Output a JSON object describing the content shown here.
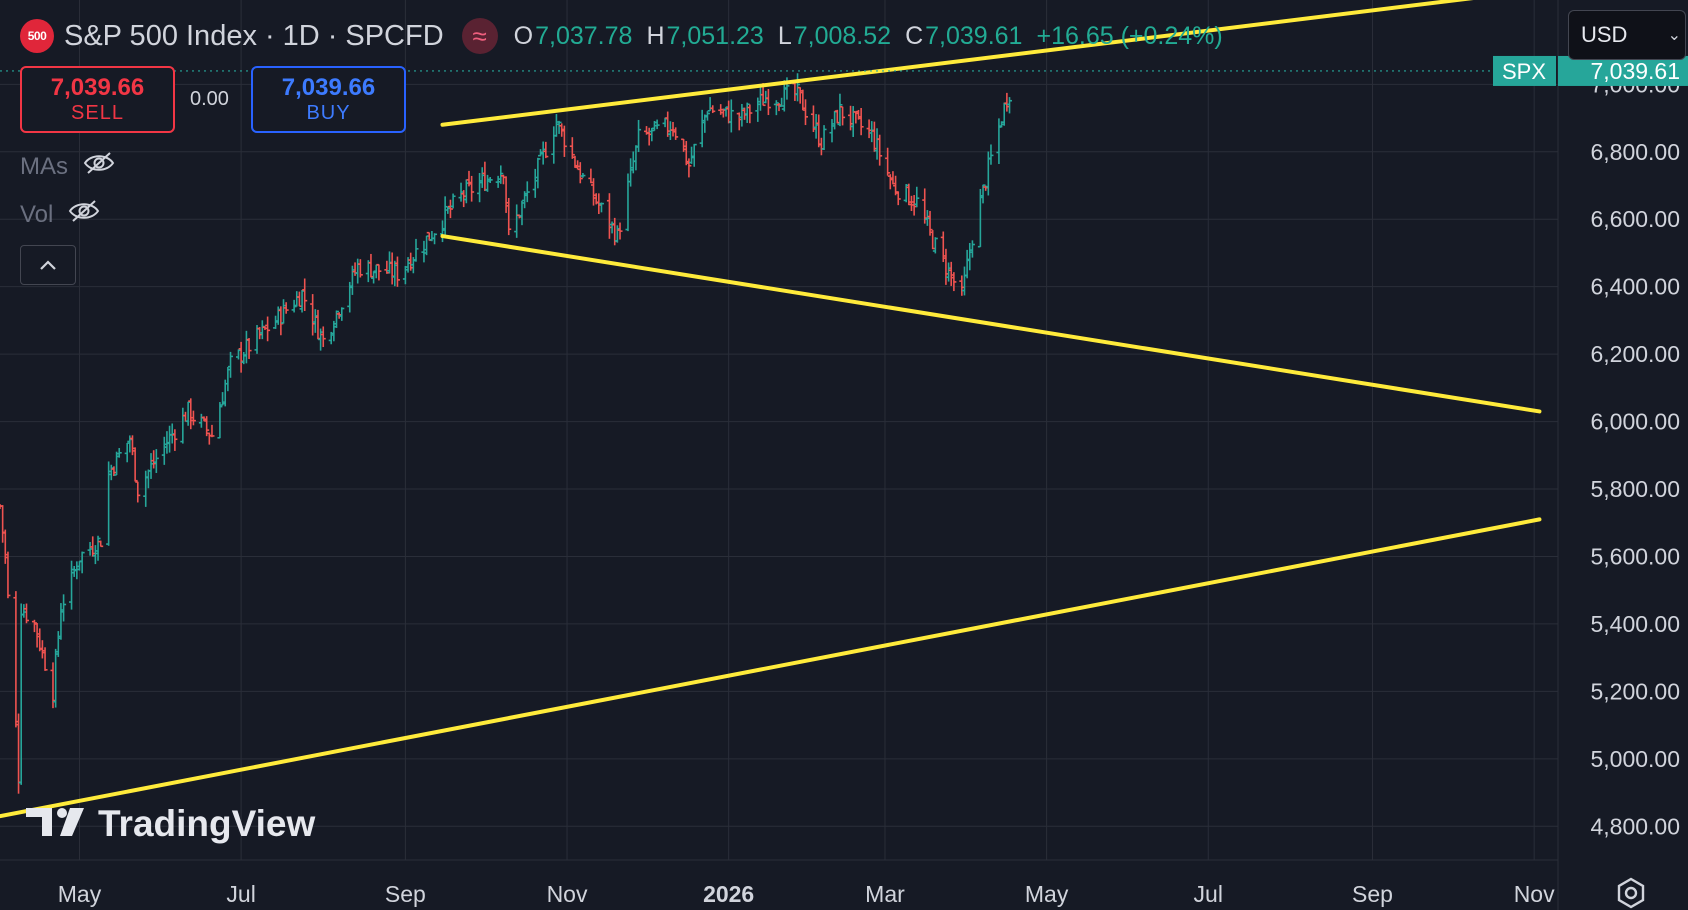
{
  "header": {
    "symbol_badge": "500",
    "title": "S&P 500 Index",
    "interval": "1D",
    "exchange": "SPCFD",
    "ohlc": {
      "o_label": "O",
      "o_value": "7,037.78",
      "h_label": "H",
      "h_value": "7,051.23",
      "l_label": "L",
      "l_value": "7,008.52",
      "c_label": "C",
      "c_value": "7,039.61"
    },
    "change": "+16.65 (+0.24%)"
  },
  "currency": {
    "value": "USD"
  },
  "trade": {
    "sell_price": "7,039.66",
    "sell_label": "SELL",
    "spread": "0.00",
    "buy_price": "7,039.66",
    "buy_label": "BUY"
  },
  "indicators": {
    "mas_label": "MAs",
    "vol_label": "Vol"
  },
  "price_label": {
    "symbol": "SPX",
    "value": "7,039.61"
  },
  "watermark": "TradingView",
  "colors": {
    "background": "#161a25",
    "grid": "#2a2e39",
    "up": "#26a69a",
    "down": "#ef5350",
    "trendline": "#ffeb3b",
    "price_tag": "#26a69a",
    "axis_text": "#d1d4dc"
  },
  "chart_data": {
    "type": "ohlc-bars",
    "title": "S&P 500 Index",
    "x_range": [
      "2025-04-01",
      "2026-11-10"
    ],
    "y_range": [
      4700,
      7250
    ],
    "y_ticks": [
      4800,
      5000,
      5200,
      5400,
      5600,
      5800,
      6000,
      6200,
      6400,
      6600,
      6800,
      7000
    ],
    "y_tick_labels": [
      "4,800.00",
      "5,000.00",
      "5,200.00",
      "5,400.00",
      "5,600.00",
      "5,800.00",
      "6,000.00",
      "6,200.00",
      "6,400.00",
      "6,600.00",
      "6,800.00",
      "7,000.00"
    ],
    "x_ticks": [
      {
        "date": "2025-05-01",
        "label": "May"
      },
      {
        "date": "2025-07-01",
        "label": "Jul"
      },
      {
        "date": "2025-09-01",
        "label": "Sep"
      },
      {
        "date": "2025-11-01",
        "label": "Nov"
      },
      {
        "date": "2026-01-01",
        "label": "2026"
      },
      {
        "date": "2026-03-01",
        "label": "Mar"
      },
      {
        "date": "2026-05-01",
        "label": "May"
      },
      {
        "date": "2026-07-01",
        "label": "Jul"
      },
      {
        "date": "2026-09-01",
        "label": "Sep"
      },
      {
        "date": "2026-11-01",
        "label": "Nov"
      }
    ],
    "grid": true,
    "price_path": [
      [
        "2025-04-01",
        5750
      ],
      [
        "2025-04-03",
        5600
      ],
      [
        "2025-04-07",
        5100
      ],
      [
        "2025-04-08",
        4950
      ],
      [
        "2025-04-09",
        5450
      ],
      [
        "2025-04-14",
        5400
      ],
      [
        "2025-04-21",
        5200
      ],
      [
        "2025-04-24",
        5450
      ],
      [
        "2025-05-01",
        5600
      ],
      [
        "2025-05-09",
        5650
      ],
      [
        "2025-05-12",
        5850
      ],
      [
        "2025-05-20",
        5950
      ],
      [
        "2025-05-23",
        5800
      ],
      [
        "2025-06-02",
        5930
      ],
      [
        "2025-06-11",
        6030
      ],
      [
        "2025-06-20",
        5960
      ],
      [
        "2025-06-27",
        6170
      ],
      [
        "2025-07-10",
        6270
      ],
      [
        "2025-07-24",
        6380
      ],
      [
        "2025-08-01",
        6240
      ],
      [
        "2025-08-14",
        6460
      ],
      [
        "2025-08-29",
        6440
      ],
      [
        "2025-09-10",
        6550
      ],
      [
        "2025-09-22",
        6670
      ],
      [
        "2025-10-08",
        6750
      ],
      [
        "2025-10-10",
        6550
      ],
      [
        "2025-10-20",
        6730
      ],
      [
        "2025-10-28",
        6890
      ],
      [
        "2025-11-07",
        6720
      ],
      [
        "2025-11-20",
        6550
      ],
      [
        "2025-11-28",
        6840
      ],
      [
        "2025-12-11",
        6880
      ],
      [
        "2025-12-17",
        6760
      ],
      [
        "2025-12-24",
        6930
      ],
      [
        "2026-01-05",
        6900
      ],
      [
        "2026-01-15",
        6960
      ],
      [
        "2026-01-27",
        6970
      ],
      [
        "2026-02-05",
        6830
      ],
      [
        "2026-02-12",
        6920
      ],
      [
        "2026-02-24",
        6850
      ],
      [
        "2026-03-04",
        6700
      ],
      [
        "2026-03-13",
        6650
      ],
      [
        "2026-03-20",
        6520
      ],
      [
        "2026-03-30",
        6370
      ],
      [
        "2026-04-03",
        6550
      ],
      [
        "2026-04-09",
        6750
      ],
      [
        "2026-04-16",
        6960
      ],
      [
        "2026-04-20",
        7039.61
      ]
    ],
    "trendlines": [
      {
        "from": [
          "2025-09-15",
          6880
        ],
        "to": [
          "2026-11-03",
          7280
        ]
      },
      {
        "from": [
          "2025-09-15",
          6550
        ],
        "to": [
          "2026-11-03",
          6030
        ]
      },
      {
        "from": [
          "2025-04-01",
          4830
        ],
        "to": [
          "2026-11-03",
          5710
        ]
      }
    ],
    "last_price": 7039.61
  }
}
